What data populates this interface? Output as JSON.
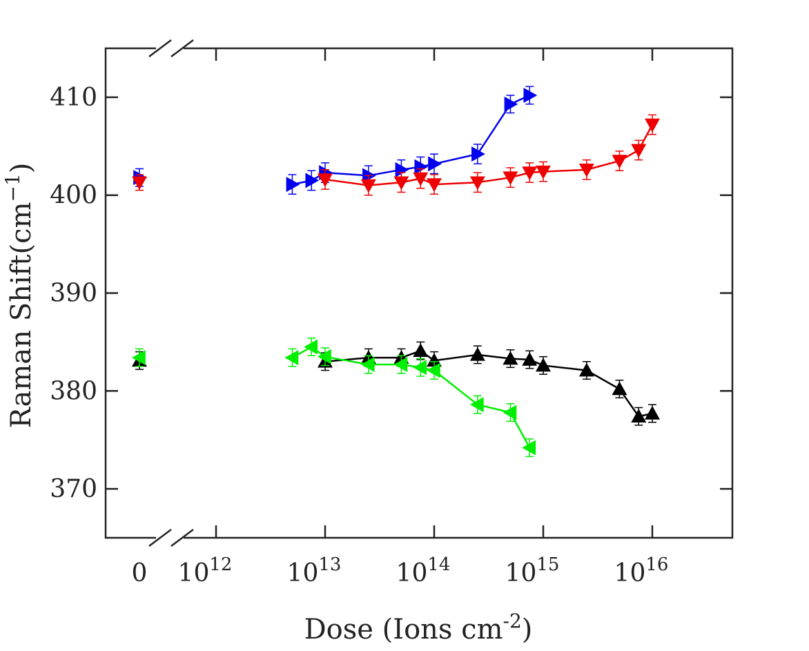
{
  "chart_data": {
    "type": "scatter",
    "title": "",
    "xlabel": "Dose (Ions cm",
    "xlabel_superscript": "-2",
    "xlabel_close": ")",
    "ylabel": "Raman Shift(cm",
    "ylabel_superscript": "−1",
    "ylabel_close": ")",
    "x_scale": "log with axis break; separate zero point",
    "x_zero_label": "0",
    "x_ticks": [
      {
        "base": "10",
        "exp": "12",
        "value": 1000000000000.0
      },
      {
        "base": "10",
        "exp": "13",
        "value": 10000000000000.0
      },
      {
        "base": "10",
        "exp": "14",
        "value": 100000000000000.0
      },
      {
        "base": "10",
        "exp": "15",
        "value": 1000000000000000.0
      },
      {
        "base": "10",
        "exp": "16",
        "value": 1e+16
      }
    ],
    "xlim": [
      300000000000.0,
      5e+16
    ],
    "y_ticks": [
      "370",
      "380",
      "390",
      "400",
      "410"
    ],
    "ylim": [
      365,
      415
    ],
    "grid": false,
    "legend": false,
    "series": [
      {
        "color": "#0000ee",
        "marker": "triangle-right",
        "zero": {
          "y": 401.8,
          "err": 0.9
        },
        "points": [
          {
            "x": 5000000000000.0,
            "y": 401.1,
            "err": 1.0
          },
          {
            "x": 7500000000000.0,
            "y": 401.5,
            "err": 1.0
          },
          {
            "x": 10000000000000.0,
            "y": 402.3,
            "err": 1.0
          },
          {
            "x": 25000000000000.0,
            "y": 402.0,
            "err": 1.0
          },
          {
            "x": 50000000000000.0,
            "y": 402.6,
            "err": 1.0
          },
          {
            "x": 75000000000000.0,
            "y": 402.9,
            "err": 1.0
          },
          {
            "x": 100000000000000.0,
            "y": 403.2,
            "err": 1.0
          },
          {
            "x": 250000000000000.0,
            "y": 404.2,
            "err": 1.0
          },
          {
            "x": 500000000000000.0,
            "y": 409.3,
            "err": 0.9
          },
          {
            "x": 750000000000000.0,
            "y": 410.2,
            "err": 0.9
          }
        ]
      },
      {
        "color": "#ee0000",
        "marker": "triangle-down",
        "zero": {
          "y": 401.3,
          "err": 0.8
        },
        "points": [
          {
            "x": 10000000000000.0,
            "y": 401.6,
            "err": 1.0
          },
          {
            "x": 25000000000000.0,
            "y": 401.0,
            "err": 1.0
          },
          {
            "x": 50000000000000.0,
            "y": 401.3,
            "err": 1.0
          },
          {
            "x": 75000000000000.0,
            "y": 401.7,
            "err": 1.0
          },
          {
            "x": 100000000000000.0,
            "y": 401.1,
            "err": 1.0
          },
          {
            "x": 250000000000000.0,
            "y": 401.3,
            "err": 1.0
          },
          {
            "x": 500000000000000.0,
            "y": 401.8,
            "err": 1.0
          },
          {
            "x": 750000000000000.0,
            "y": 402.3,
            "err": 1.0
          },
          {
            "x": 1000000000000000.0,
            "y": 402.4,
            "err": 1.0
          },
          {
            "x": 2500000000000000.0,
            "y": 402.6,
            "err": 1.0
          },
          {
            "x": 5000000000000000.0,
            "y": 403.5,
            "err": 1.0
          },
          {
            "x": 7500000000000000.0,
            "y": 404.6,
            "err": 1.0
          },
          {
            "x": 1e+16,
            "y": 407.2,
            "err": 1.0
          }
        ]
      },
      {
        "color": "#000000",
        "marker": "triangle-up",
        "zero": {
          "y": 383.1,
          "err": 0.9
        },
        "points": [
          {
            "x": 10000000000000.0,
            "y": 383.0,
            "err": 0.9
          },
          {
            "x": 25000000000000.0,
            "y": 383.4,
            "err": 0.9
          },
          {
            "x": 50000000000000.0,
            "y": 383.4,
            "err": 0.9
          },
          {
            "x": 75000000000000.0,
            "y": 384.1,
            "err": 0.9
          },
          {
            "x": 100000000000000.0,
            "y": 383.1,
            "err": 0.9
          },
          {
            "x": 250000000000000.0,
            "y": 383.7,
            "err": 0.9
          },
          {
            "x": 500000000000000.0,
            "y": 383.3,
            "err": 0.9
          },
          {
            "x": 750000000000000.0,
            "y": 383.2,
            "err": 0.9
          },
          {
            "x": 1000000000000000.0,
            "y": 382.6,
            "err": 0.9
          },
          {
            "x": 2500000000000000.0,
            "y": 382.1,
            "err": 0.9
          },
          {
            "x": 5000000000000000.0,
            "y": 380.2,
            "err": 0.9
          },
          {
            "x": 7500000000000000.0,
            "y": 377.4,
            "err": 0.9
          },
          {
            "x": 1e+16,
            "y": 377.7,
            "err": 0.9
          }
        ]
      },
      {
        "color": "#00ee00",
        "marker": "triangle-left",
        "zero": {
          "y": 383.4,
          "err": 0.9
        },
        "points": [
          {
            "x": 5000000000000.0,
            "y": 383.4,
            "err": 0.9
          },
          {
            "x": 7500000000000.0,
            "y": 384.5,
            "err": 0.9
          },
          {
            "x": 10000000000000.0,
            "y": 383.5,
            "err": 0.9
          },
          {
            "x": 25000000000000.0,
            "y": 382.7,
            "err": 0.9
          },
          {
            "x": 50000000000000.0,
            "y": 382.7,
            "err": 0.9
          },
          {
            "x": 75000000000000.0,
            "y": 382.4,
            "err": 0.9
          },
          {
            "x": 100000000000000.0,
            "y": 382.1,
            "err": 0.9
          },
          {
            "x": 250000000000000.0,
            "y": 378.6,
            "err": 0.9
          },
          {
            "x": 500000000000000.0,
            "y": 377.8,
            "err": 0.9
          },
          {
            "x": 750000000000000.0,
            "y": 374.2,
            "err": 0.9
          }
        ]
      }
    ]
  }
}
